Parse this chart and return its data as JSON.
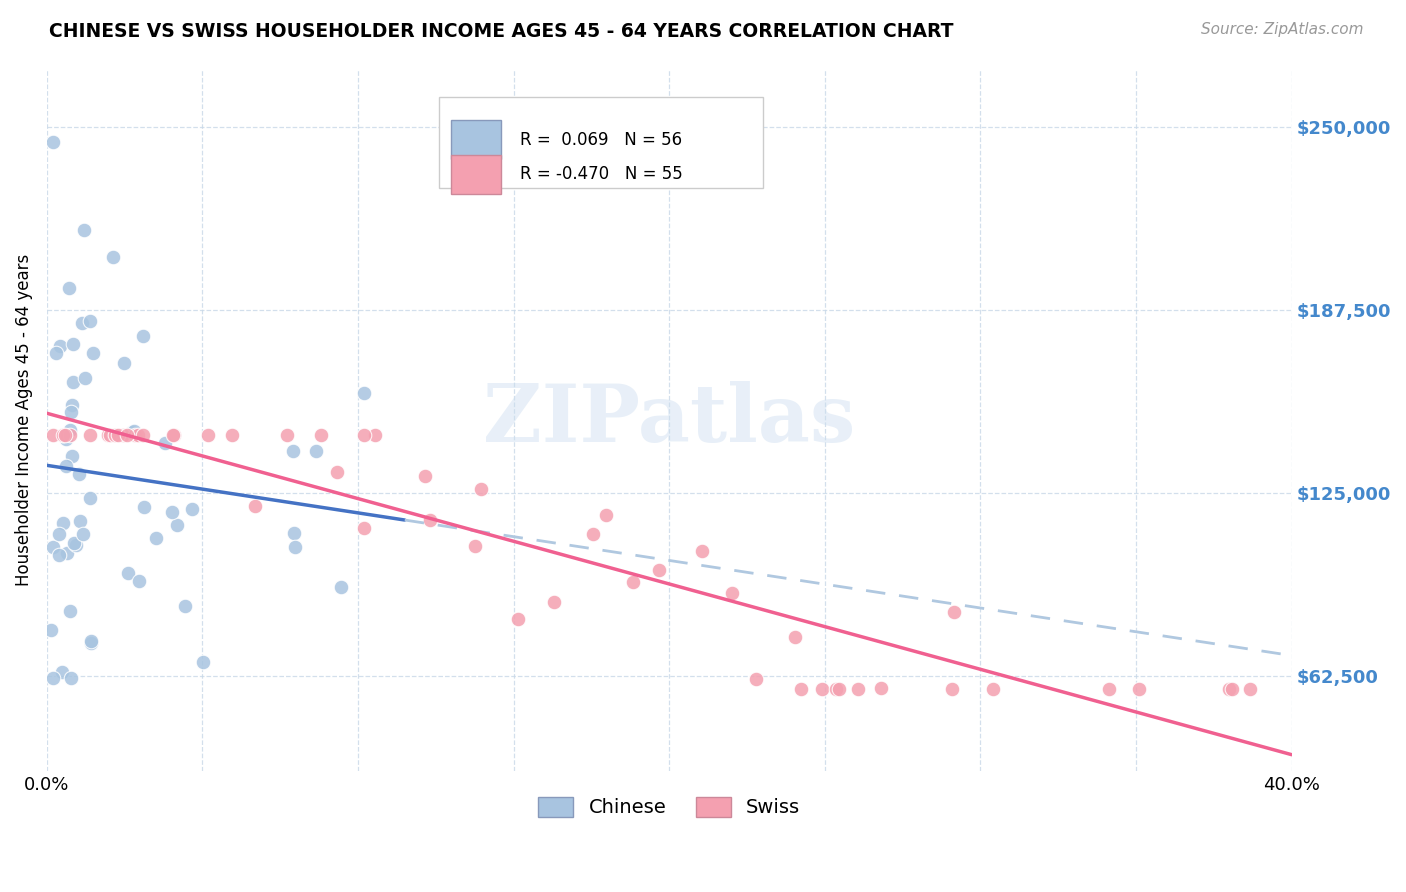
{
  "title": "CHINESE VS SWISS HOUSEHOLDER INCOME AGES 45 - 64 YEARS CORRELATION CHART",
  "source": "Source: ZipAtlas.com",
  "ylabel": "Householder Income Ages 45 - 64 years",
  "xlim": [
    0.0,
    0.4
  ],
  "ylim": [
    30000,
    270000
  ],
  "yticks": [
    62500,
    125000,
    187500,
    250000
  ],
  "ytick_labels": [
    "$62,500",
    "$125,000",
    "$187,500",
    "$250,000"
  ],
  "xticks": [
    0.0,
    0.05,
    0.1,
    0.15,
    0.2,
    0.25,
    0.3,
    0.35,
    0.4
  ],
  "xtick_labels": [
    "0.0%",
    "",
    "",
    "",
    "",
    "",
    "",
    "",
    "40.0%"
  ],
  "chinese_R": 0.069,
  "chinese_N": 56,
  "swiss_R": -0.47,
  "swiss_N": 55,
  "chinese_color": "#a8c4e0",
  "swiss_color": "#f4a0b0",
  "chinese_line_solid_color": "#4472c4",
  "chinese_line_dash_color": "#b0c8e0",
  "swiss_line_color": "#f06090",
  "legend_chinese_label": "Chinese",
  "legend_swiss_label": "Swiss"
}
